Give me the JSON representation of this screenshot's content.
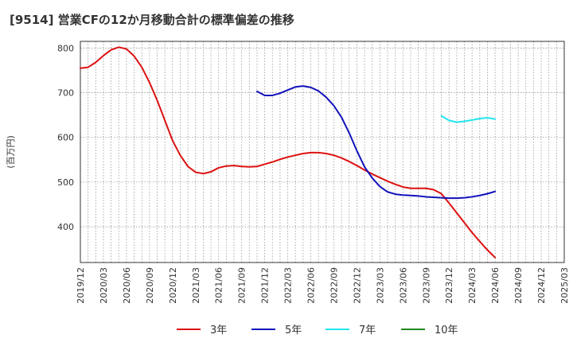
{
  "chart_data": {
    "type": "line",
    "title": "[9514]  営業CFの12か月移動合計の標準偏差の推移",
    "ylabel": "(百万円)",
    "xlabel": "",
    "ylim": [
      320,
      815
    ],
    "yticks": [
      400,
      500,
      600,
      700,
      800
    ],
    "xlim": [
      "2019-12",
      "2025-03"
    ],
    "xticks": [
      "2019/12",
      "2020/03",
      "2020/06",
      "2020/09",
      "2020/12",
      "2021/03",
      "2021/06",
      "2021/09",
      "2021/12",
      "2022/03",
      "2022/06",
      "2022/09",
      "2022/12",
      "2023/03",
      "2023/06",
      "2023/09",
      "2023/12",
      "2024/03",
      "2024/06",
      "2024/09",
      "2024/12",
      "2025/03"
    ],
    "grid": true,
    "legend_position": "bottom",
    "series": [
      {
        "name": "3年",
        "color": "#dd1111",
        "points": [
          [
            "2019-12",
            755
          ],
          [
            "2020-01",
            757
          ],
          [
            "2020-02",
            768
          ],
          [
            "2020-03",
            783
          ],
          [
            "2020-04",
            796
          ],
          [
            "2020-05",
            802
          ],
          [
            "2020-06",
            798
          ],
          [
            "2020-07",
            782
          ],
          [
            "2020-08",
            757
          ],
          [
            "2020-09",
            723
          ],
          [
            "2020-10",
            683
          ],
          [
            "2020-11",
            638
          ],
          [
            "2020-12",
            593
          ],
          [
            "2021-01",
            560
          ],
          [
            "2021-02",
            535
          ],
          [
            "2021-03",
            522
          ],
          [
            "2021-04",
            519
          ],
          [
            "2021-05",
            523
          ],
          [
            "2021-06",
            532
          ],
          [
            "2021-07",
            536
          ],
          [
            "2021-08",
            537
          ],
          [
            "2021-09",
            535
          ],
          [
            "2021-10",
            534
          ],
          [
            "2021-11",
            535
          ],
          [
            "2021-12",
            540
          ],
          [
            "2022-01",
            545
          ],
          [
            "2022-02",
            551
          ],
          [
            "2022-03",
            556
          ],
          [
            "2022-04",
            560
          ],
          [
            "2022-05",
            564
          ],
          [
            "2022-06",
            566
          ],
          [
            "2022-07",
            566
          ],
          [
            "2022-08",
            564
          ],
          [
            "2022-09",
            560
          ],
          [
            "2022-10",
            554
          ],
          [
            "2022-11",
            546
          ],
          [
            "2022-12",
            537
          ],
          [
            "2023-01",
            527
          ],
          [
            "2023-02",
            518
          ],
          [
            "2023-03",
            510
          ],
          [
            "2023-04",
            502
          ],
          [
            "2023-05",
            495
          ],
          [
            "2023-06",
            489
          ],
          [
            "2023-07",
            486
          ],
          [
            "2023-08",
            486
          ],
          [
            "2023-09",
            486
          ],
          [
            "2023-10",
            483
          ],
          [
            "2023-11",
            474
          ],
          [
            "2023-12",
            453
          ],
          [
            "2024-01",
            431
          ],
          [
            "2024-02",
            409
          ],
          [
            "2024-03",
            387
          ],
          [
            "2024-04",
            367
          ],
          [
            "2024-05",
            348
          ],
          [
            "2024-06",
            331
          ]
        ]
      },
      {
        "name": "5年",
        "color": "#1111bb",
        "points": [
          [
            "2021-11",
            703
          ],
          [
            "2021-12",
            694
          ],
          [
            "2022-01",
            694
          ],
          [
            "2022-02",
            699
          ],
          [
            "2022-03",
            706
          ],
          [
            "2022-04",
            713
          ],
          [
            "2022-05",
            715
          ],
          [
            "2022-06",
            712
          ],
          [
            "2022-07",
            704
          ],
          [
            "2022-08",
            690
          ],
          [
            "2022-09",
            671
          ],
          [
            "2022-10",
            645
          ],
          [
            "2022-11",
            610
          ],
          [
            "2022-12",
            570
          ],
          [
            "2023-01",
            534
          ],
          [
            "2023-02",
            509
          ],
          [
            "2023-03",
            490
          ],
          [
            "2023-04",
            478
          ],
          [
            "2023-05",
            473
          ],
          [
            "2023-06",
            471
          ],
          [
            "2023-07",
            470
          ],
          [
            "2023-08",
            469
          ],
          [
            "2023-09",
            467
          ],
          [
            "2023-10",
            466
          ],
          [
            "2023-11",
            465
          ],
          [
            "2023-12",
            464
          ],
          [
            "2024-01",
            464
          ],
          [
            "2024-02",
            465
          ],
          [
            "2024-03",
            467
          ],
          [
            "2024-04",
            470
          ],
          [
            "2024-05",
            474
          ],
          [
            "2024-06",
            479
          ]
        ]
      },
      {
        "name": "7年",
        "color": "#22e5ee",
        "points": [
          [
            "2023-11",
            648
          ],
          [
            "2023-12",
            638
          ],
          [
            "2024-01",
            634
          ],
          [
            "2024-02",
            636
          ],
          [
            "2024-03",
            639
          ],
          [
            "2024-04",
            642
          ],
          [
            "2024-05",
            644
          ],
          [
            "2024-06",
            641
          ]
        ]
      },
      {
        "name": "10年",
        "color": "#228822",
        "points": []
      }
    ]
  }
}
